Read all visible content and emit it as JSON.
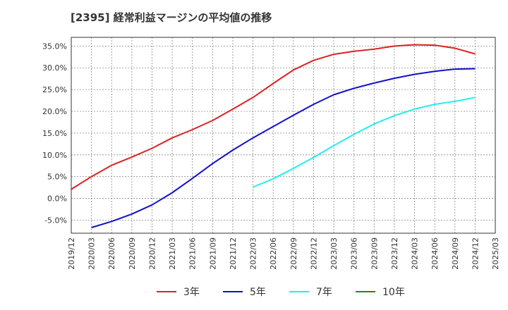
{
  "title": "[2395]  経常利益マージンの平均値の推移",
  "chart_data": {
    "type": "line",
    "title": "[2395]  経常利益マージンの平均値の推移",
    "xlabel": "",
    "ylabel": "",
    "ylim": [
      -8.0,
      37.0
    ],
    "grid": true,
    "legend_position": "bottom",
    "x_ticks": [
      "2019/12",
      "2020/03",
      "2020/06",
      "2020/09",
      "2020/12",
      "2021/03",
      "2021/06",
      "2021/09",
      "2021/12",
      "2022/03",
      "2022/06",
      "2022/09",
      "2022/12",
      "2023/03",
      "2023/06",
      "2023/09",
      "2023/12",
      "2024/03",
      "2024/06",
      "2024/09",
      "2024/12",
      "2025/03"
    ],
    "y_ticks": [
      -5.0,
      0.0,
      5.0,
      10.0,
      15.0,
      20.0,
      25.0,
      30.0,
      35.0
    ],
    "y_tick_labels": [
      "-5.0%",
      "0.0%",
      "5.0%",
      "10.0%",
      "15.0%",
      "20.0%",
      "25.0%",
      "30.0%",
      "35.0%"
    ],
    "series": [
      {
        "name": "3年",
        "color": "#dd2222",
        "x": [
          "2019/12",
          "2020/03",
          "2020/06",
          "2020/09",
          "2020/12",
          "2021/03",
          "2021/06",
          "2021/09",
          "2021/12",
          "2022/03",
          "2022/06",
          "2022/09",
          "2022/12",
          "2023/03",
          "2023/06",
          "2023/09",
          "2023/12",
          "2024/03",
          "2024/06",
          "2024/09",
          "2024/12"
        ],
        "values": [
          2.1,
          5.0,
          7.6,
          9.5,
          11.5,
          13.9,
          15.8,
          17.9,
          20.5,
          23.2,
          26.4,
          29.5,
          31.7,
          33.1,
          33.8,
          34.3,
          35.0,
          35.3,
          35.2,
          34.5,
          33.2
        ]
      },
      {
        "name": "5年",
        "color": "#1111cc",
        "x": [
          "2020/03",
          "2020/06",
          "2020/09",
          "2020/12",
          "2021/03",
          "2021/06",
          "2021/09",
          "2021/12",
          "2022/03",
          "2022/06",
          "2022/09",
          "2022/12",
          "2023/03",
          "2023/06",
          "2023/09",
          "2023/12",
          "2024/03",
          "2024/06",
          "2024/09",
          "2024/12"
        ],
        "values": [
          -6.7,
          -5.3,
          -3.6,
          -1.5,
          1.3,
          4.6,
          8.0,
          11.1,
          13.9,
          16.5,
          19.1,
          21.6,
          23.8,
          25.3,
          26.5,
          27.6,
          28.5,
          29.2,
          29.7,
          29.8
        ]
      },
      {
        "name": "7年",
        "color": "#22eeee",
        "x": [
          "2022/03",
          "2022/06",
          "2022/09",
          "2022/12",
          "2023/03",
          "2023/06",
          "2023/09",
          "2023/12",
          "2024/03",
          "2024/06",
          "2024/09",
          "2024/12"
        ],
        "values": [
          2.6,
          4.5,
          6.9,
          9.4,
          12.1,
          14.7,
          17.1,
          19.0,
          20.5,
          21.6,
          22.3,
          23.2
        ]
      },
      {
        "name": "10年",
        "color": "#228822",
        "x": [],
        "values": []
      }
    ]
  }
}
